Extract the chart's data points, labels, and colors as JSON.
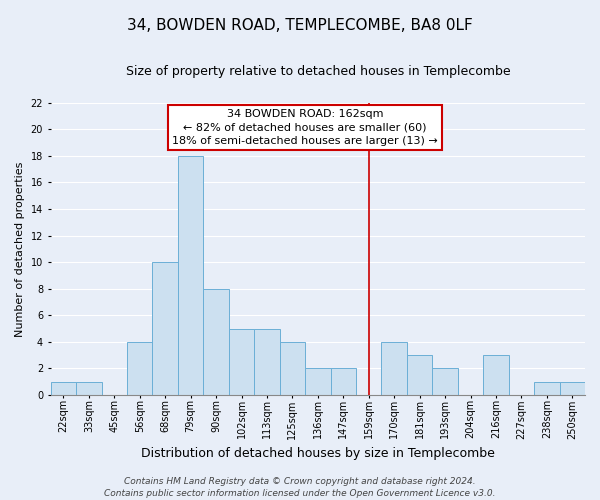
{
  "title": "34, BOWDEN ROAD, TEMPLECOMBE, BA8 0LF",
  "subtitle": "Size of property relative to detached houses in Templecombe",
  "xlabel": "Distribution of detached houses by size in Templecombe",
  "ylabel": "Number of detached properties",
  "bin_labels": [
    "22sqm",
    "33sqm",
    "45sqm",
    "56sqm",
    "68sqm",
    "79sqm",
    "90sqm",
    "102sqm",
    "113sqm",
    "125sqm",
    "136sqm",
    "147sqm",
    "159sqm",
    "170sqm",
    "181sqm",
    "193sqm",
    "204sqm",
    "216sqm",
    "227sqm",
    "238sqm",
    "250sqm"
  ],
  "bar_heights": [
    1,
    1,
    0,
    4,
    10,
    18,
    8,
    5,
    5,
    4,
    2,
    2,
    0,
    4,
    3,
    2,
    0,
    3,
    0,
    1,
    1
  ],
  "bar_color": "#cce0f0",
  "bar_edge_color": "#6bafd6",
  "vline_index": 12,
  "vline_color": "#cc0000",
  "ylim": [
    0,
    22
  ],
  "yticks": [
    0,
    2,
    4,
    6,
    8,
    10,
    12,
    14,
    16,
    18,
    20,
    22
  ],
  "annotation_title": "34 BOWDEN ROAD: 162sqm",
  "annotation_line1": "← 82% of detached houses are smaller (60)",
  "annotation_line2": "18% of semi-detached houses are larger (13) →",
  "annotation_box_facecolor": "#ffffff",
  "annotation_box_edgecolor": "#cc0000",
  "footer_line1": "Contains HM Land Registry data © Crown copyright and database right 2024.",
  "footer_line2": "Contains public sector information licensed under the Open Government Licence v3.0.",
  "background_color": "#e8eef8",
  "plot_bg_color": "#e8eef8",
  "grid_color": "#ffffff",
  "title_fontsize": 11,
  "subtitle_fontsize": 9,
  "xlabel_fontsize": 9,
  "ylabel_fontsize": 8,
  "tick_fontsize": 7,
  "annotation_fontsize": 8,
  "footer_fontsize": 6.5
}
